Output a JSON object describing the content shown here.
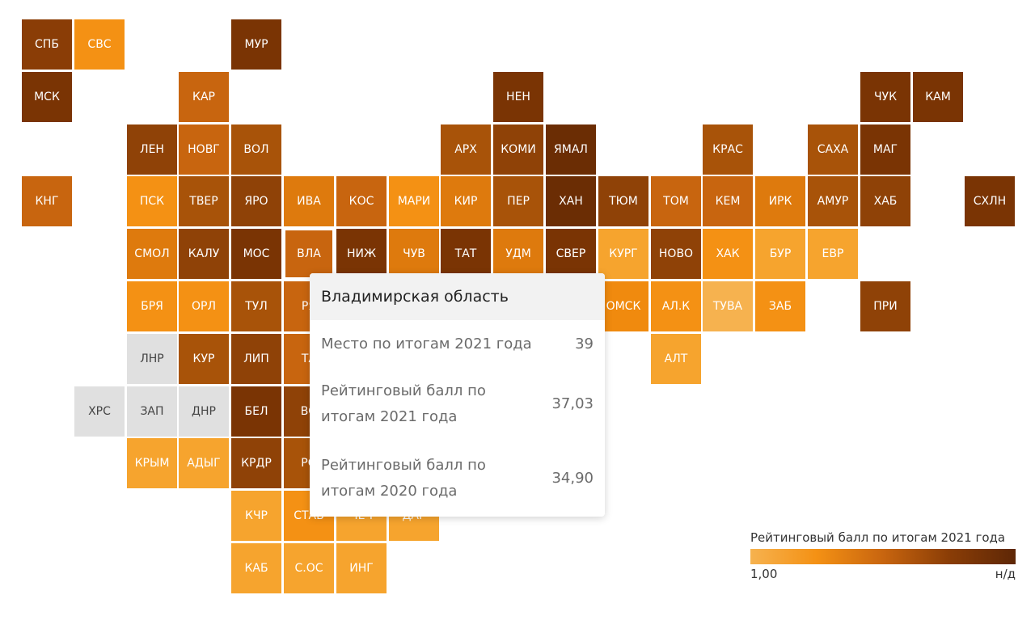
{
  "legend": {
    "title": "Рейтинговый балл по итогам 2021 года",
    "min_label": "1,00",
    "max_label": "н/д",
    "gradient_colors": [
      "#f6b24f",
      "#f49114",
      "#c8650f",
      "#8a3d06",
      "#5e2706"
    ]
  },
  "tooltip": {
    "region": "Владимирская область",
    "rows": [
      {
        "label": "Место по итогам 2021 года",
        "value": "39"
      },
      {
        "label": "Рейтинговый балл по итогам 2021 года",
        "value": "37,03"
      },
      {
        "label": "Рейтинговый балл по итогам 2020 года",
        "value": "34,90"
      }
    ]
  },
  "regions": [
    {
      "code": "СПБ",
      "col": 0,
      "row": 0,
      "color": "#8a3d06"
    },
    {
      "code": "СВС",
      "col": 1,
      "row": 0,
      "color": "#f49114"
    },
    {
      "code": "МУР",
      "col": 4,
      "row": 0,
      "color": "#7a3404"
    },
    {
      "code": "МСК",
      "col": 0,
      "row": 1,
      "color": "#7a3404"
    },
    {
      "code": "КАР",
      "col": 3,
      "row": 1,
      "color": "#c8650f"
    },
    {
      "code": "НЕН",
      "col": 9,
      "row": 1,
      "color": "#7a3404"
    },
    {
      "code": "ЧУК",
      "col": 16,
      "row": 1,
      "color": "#7a3404"
    },
    {
      "code": "КАМ",
      "col": 17,
      "row": 1,
      "color": "#7a3404"
    },
    {
      "code": "ЛЕН",
      "col": 2,
      "row": 2,
      "color": "#8f4207"
    },
    {
      "code": "НОВГ",
      "col": 3,
      "row": 2,
      "color": "#c8650f"
    },
    {
      "code": "ВОЛ",
      "col": 4,
      "row": 2,
      "color": "#a85309"
    },
    {
      "code": "АРХ",
      "col": 8,
      "row": 2,
      "color": "#a85309"
    },
    {
      "code": "КОМИ",
      "col": 9,
      "row": 2,
      "color": "#8f4207"
    },
    {
      "code": "ЯМАЛ",
      "col": 10,
      "row": 2,
      "color": "#6b2d04"
    },
    {
      "code": "КРАС",
      "col": 13,
      "row": 2,
      "color": "#a85309"
    },
    {
      "code": "САХА",
      "col": 15,
      "row": 2,
      "color": "#a85309"
    },
    {
      "code": "МАГ",
      "col": 16,
      "row": 2,
      "color": "#7a3404"
    },
    {
      "code": "КНГ",
      "col": 0,
      "row": 3,
      "color": "#c8650f"
    },
    {
      "code": "ПСК",
      "col": 2,
      "row": 3,
      "color": "#f49114"
    },
    {
      "code": "ТВЕР",
      "col": 3,
      "row": 3,
      "color": "#a85309"
    },
    {
      "code": "ЯРО",
      "col": 4,
      "row": 3,
      "color": "#8f4207"
    },
    {
      "code": "ИВА",
      "col": 5,
      "row": 3,
      "color": "#de7a0d"
    },
    {
      "code": "КОС",
      "col": 6,
      "row": 3,
      "color": "#c8650f"
    },
    {
      "code": "МАРИ",
      "col": 7,
      "row": 3,
      "color": "#f49114"
    },
    {
      "code": "КИР",
      "col": 8,
      "row": 3,
      "color": "#de7a0d"
    },
    {
      "code": "ПЕР",
      "col": 9,
      "row": 3,
      "color": "#a85309"
    },
    {
      "code": "ХАН",
      "col": 10,
      "row": 3,
      "color": "#6b2d04"
    },
    {
      "code": "ТЮМ",
      "col": 11,
      "row": 3,
      "color": "#8f4207"
    },
    {
      "code": "ТОМ",
      "col": 12,
      "row": 3,
      "color": "#c8650f"
    },
    {
      "code": "КЕМ",
      "col": 13,
      "row": 3,
      "color": "#c8650f"
    },
    {
      "code": "ИРК",
      "col": 14,
      "row": 3,
      "color": "#de7a0d"
    },
    {
      "code": "АМУР",
      "col": 15,
      "row": 3,
      "color": "#a85309"
    },
    {
      "code": "ХАБ",
      "col": 16,
      "row": 3,
      "color": "#8f4207"
    },
    {
      "code": "СХЛН",
      "col": 18,
      "row": 3,
      "color": "#7a3404"
    },
    {
      "code": "СМОЛ",
      "col": 2,
      "row": 4,
      "color": "#de7a0d"
    },
    {
      "code": "КАЛУ",
      "col": 3,
      "row": 4,
      "color": "#8f4207"
    },
    {
      "code": "МОС",
      "col": 4,
      "row": 4,
      "color": "#7a3404"
    },
    {
      "code": "ВЛА",
      "col": 5,
      "row": 4,
      "color": "#c8650f"
    },
    {
      "code": "НИЖ",
      "col": 6,
      "row": 4,
      "color": "#7a3404"
    },
    {
      "code": "ЧУВ",
      "col": 7,
      "row": 4,
      "color": "#de7a0d"
    },
    {
      "code": "ТАТ",
      "col": 8,
      "row": 4,
      "color": "#7a3404"
    },
    {
      "code": "УДМ",
      "col": 9,
      "row": 4,
      "color": "#de7a0d"
    },
    {
      "code": "СВЕР",
      "col": 10,
      "row": 4,
      "color": "#7a3404"
    },
    {
      "code": "КУРГ",
      "col": 11,
      "row": 4,
      "color": "#f6a42e"
    },
    {
      "code": "НОВО",
      "col": 12,
      "row": 4,
      "color": "#8f4207"
    },
    {
      "code": "ХАК",
      "col": 13,
      "row": 4,
      "color": "#f49114"
    },
    {
      "code": "БУР",
      "col": 14,
      "row": 4,
      "color": "#f6a42e"
    },
    {
      "code": "ЕВР",
      "col": 15,
      "row": 4,
      "color": "#f6a42e"
    },
    {
      "code": "БРЯ",
      "col": 2,
      "row": 5,
      "color": "#f49114"
    },
    {
      "code": "ОРЛ",
      "col": 3,
      "row": 5,
      "color": "#f49114"
    },
    {
      "code": "ТУЛ",
      "col": 4,
      "row": 5,
      "color": "#a85309"
    },
    {
      "code": "РЯ",
      "col": 5,
      "row": 5,
      "color": "#c8650f"
    },
    {
      "code": "ОМСК",
      "col": 11,
      "row": 5,
      "color": "#f08a0e"
    },
    {
      "code": "АЛ.К",
      "col": 12,
      "row": 5,
      "color": "#f49114"
    },
    {
      "code": "ТУВА",
      "col": 13,
      "row": 5,
      "color": "#f6b24f"
    },
    {
      "code": "ЗАБ",
      "col": 14,
      "row": 5,
      "color": "#f49114"
    },
    {
      "code": "ПРИ",
      "col": 16,
      "row": 5,
      "color": "#8f4207"
    },
    {
      "code": "ЛНР",
      "col": 2,
      "row": 6,
      "color": "#e0e0e0",
      "nodata": true
    },
    {
      "code": "КУР",
      "col": 3,
      "row": 6,
      "color": "#a85309"
    },
    {
      "code": "ЛИП",
      "col": 4,
      "row": 6,
      "color": "#8f4207"
    },
    {
      "code": "ТА",
      "col": 5,
      "row": 6,
      "color": "#c8650f"
    },
    {
      "code": "АЛТ",
      "col": 12,
      "row": 6,
      "color": "#f6a42e"
    },
    {
      "code": "ХРС",
      "col": 1,
      "row": 7,
      "color": "#e0e0e0",
      "nodata": true
    },
    {
      "code": "ЗАП",
      "col": 2,
      "row": 7,
      "color": "#e0e0e0",
      "nodata": true
    },
    {
      "code": "ДНР",
      "col": 3,
      "row": 7,
      "color": "#e0e0e0",
      "nodata": true
    },
    {
      "code": "БЕЛ",
      "col": 4,
      "row": 7,
      "color": "#7a3404"
    },
    {
      "code": "ВО",
      "col": 5,
      "row": 7,
      "color": "#8f4207"
    },
    {
      "code": "КРЫМ",
      "col": 2,
      "row": 8,
      "color": "#f6a42e"
    },
    {
      "code": "АДЫГ",
      "col": 3,
      "row": 8,
      "color": "#f6a42e"
    },
    {
      "code": "КРДР",
      "col": 4,
      "row": 8,
      "color": "#8f4207"
    },
    {
      "code": "РО",
      "col": 5,
      "row": 8,
      "color": "#a85309"
    },
    {
      "code": "КЧР",
      "col": 4,
      "row": 9,
      "color": "#f6a42e"
    },
    {
      "code": "СТАВ",
      "col": 5,
      "row": 9,
      "color": "#f49114"
    },
    {
      "code": "ЧЕЧ",
      "col": 6,
      "row": 9,
      "color": "#f6a42e"
    },
    {
      "code": "ДАГ",
      "col": 7,
      "row": 9,
      "color": "#f6a42e"
    },
    {
      "code": "КАБ",
      "col": 4,
      "row": 10,
      "color": "#f6a42e"
    },
    {
      "code": "С.ОС",
      "col": 5,
      "row": 10,
      "color": "#f6a42e"
    },
    {
      "code": "ИНГ",
      "col": 6,
      "row": 10,
      "color": "#f6a42e"
    }
  ]
}
